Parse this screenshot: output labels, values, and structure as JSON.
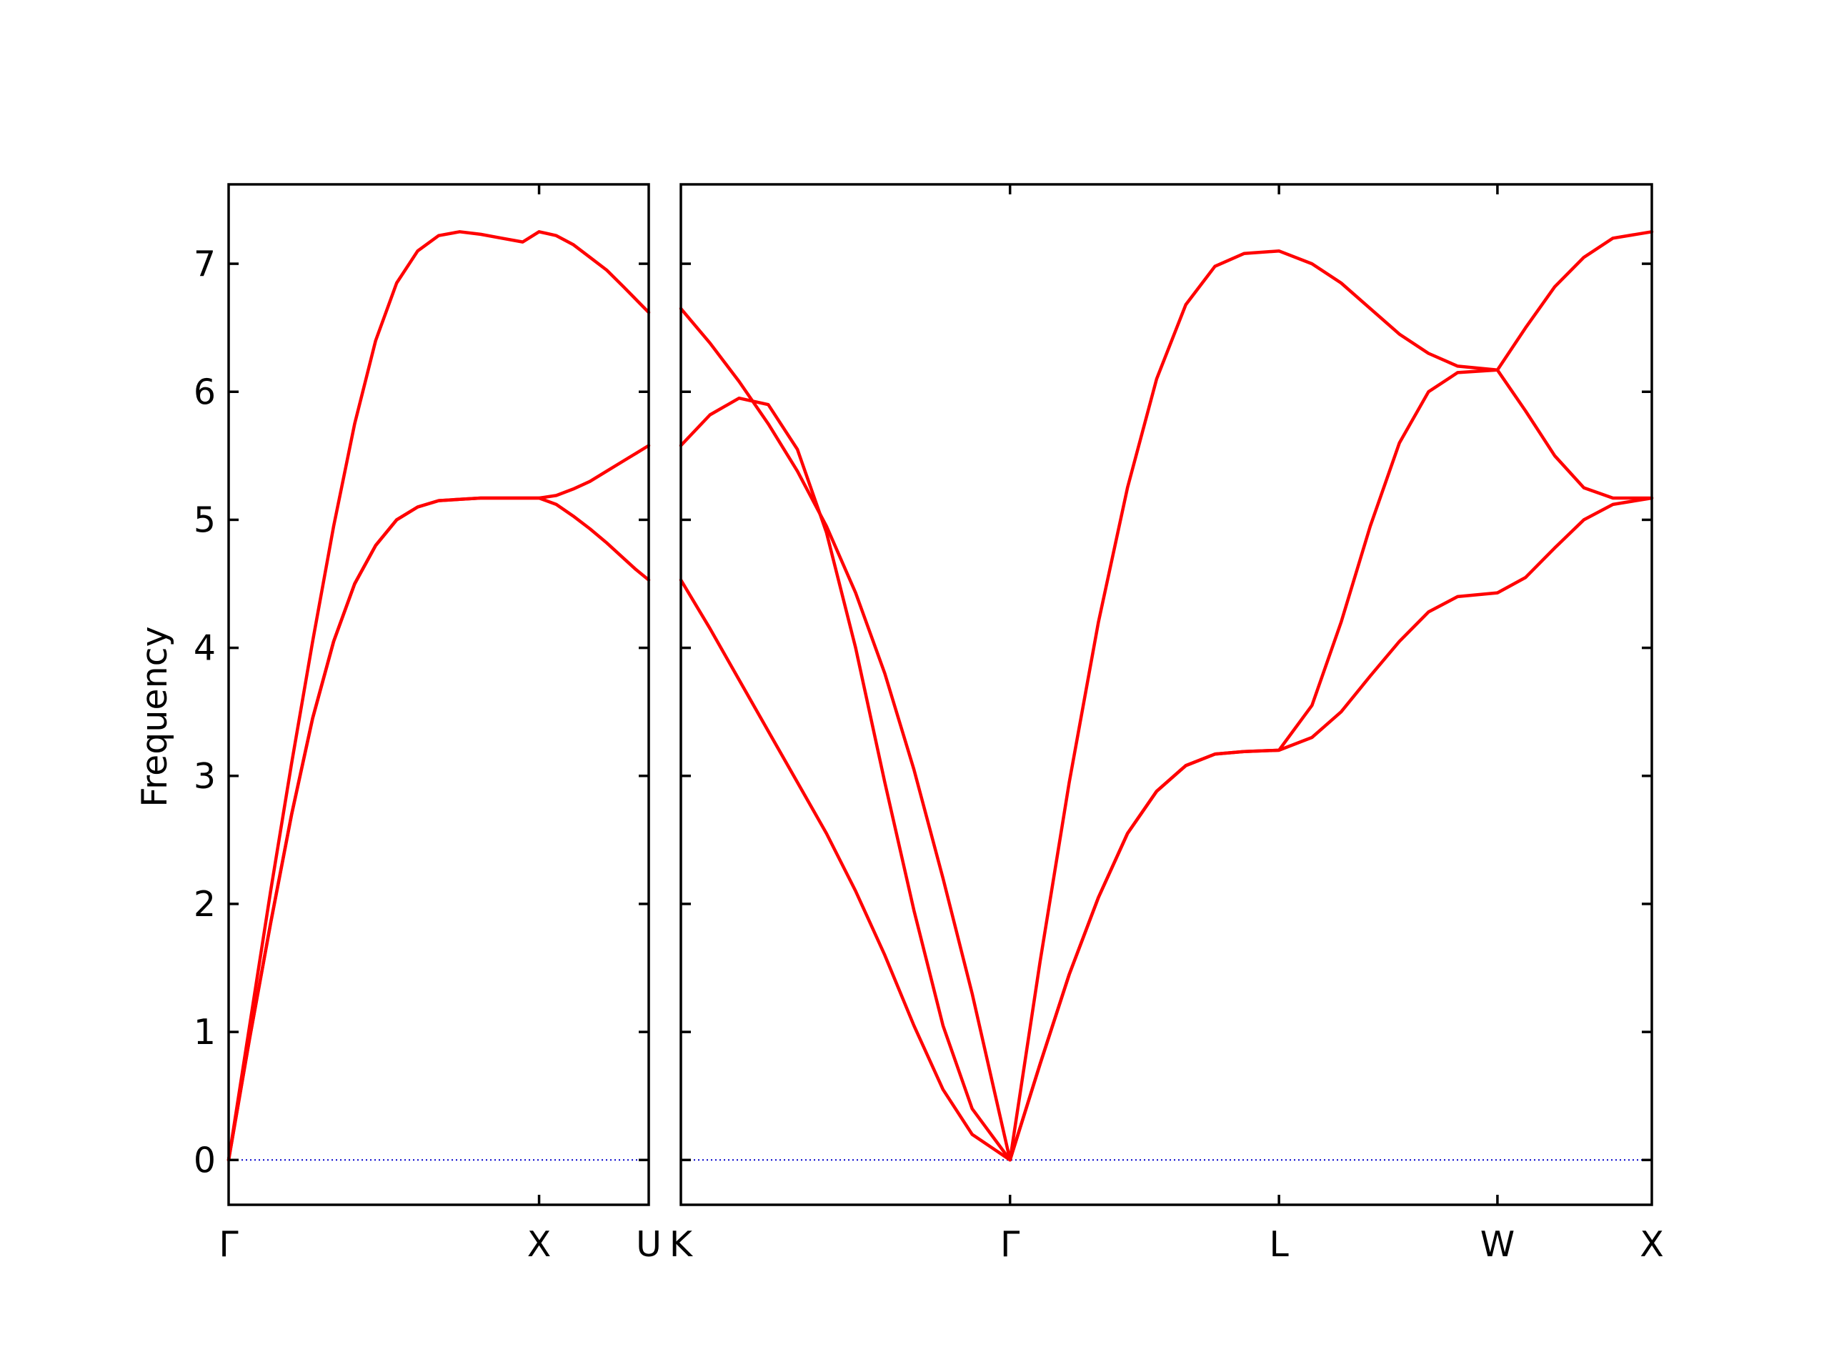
{
  "chart_data": {
    "type": "line",
    "title": "",
    "ylabel": "Frequency",
    "ylim": [
      -0.35,
      7.62
    ],
    "yticks": [
      0,
      1,
      2,
      3,
      4,
      5,
      6,
      7
    ],
    "colors": {
      "bands": "#ff0000",
      "zero_line": "#0000cc",
      "frame": "#000000"
    },
    "grid": false,
    "panels": [
      {
        "xlim": [
          0,
          1.0
        ],
        "xticks": [
          {
            "x": 0,
            "label": "Γ"
          },
          {
            "x": 0.739,
            "label": "X"
          },
          {
            "x": 1.0,
            "label": "U"
          }
        ],
        "series": [
          {
            "x": [
              0,
              0.05,
              0.1,
              0.15,
              0.2,
              0.25,
              0.3,
              0.35,
              0.4,
              0.45,
              0.5,
              0.55,
              0.6,
              0.65,
              0.7,
              0.739,
              0.78,
              0.82,
              0.86,
              0.9,
              0.94,
              0.97,
              1.0
            ],
            "y": [
              0,
              1.05,
              2.1,
              3.1,
              4.05,
              4.95,
              5.75,
              6.4,
              6.85,
              7.1,
              7.22,
              7.25,
              7.23,
              7.2,
              7.17,
              7.25,
              7.22,
              7.15,
              7.05,
              6.95,
              6.82,
              6.72,
              6.62
            ]
          },
          {
            "x": [
              0,
              0.05,
              0.1,
              0.15,
              0.2,
              0.25,
              0.3,
              0.35,
              0.4,
              0.45,
              0.5,
              0.55,
              0.6,
              0.65,
              0.7,
              0.739,
              0.78,
              0.82,
              0.86,
              0.9,
              0.94,
              0.97,
              1.0
            ],
            "y": [
              0,
              0.95,
              1.85,
              2.7,
              3.45,
              4.05,
              4.5,
              4.8,
              5.0,
              5.1,
              5.15,
              5.16,
              5.17,
              5.17,
              5.17,
              5.17,
              5.19,
              5.24,
              5.3,
              5.38,
              5.46,
              5.52,
              5.58
            ]
          },
          {
            "x": [
              0,
              0.05,
              0.1,
              0.15,
              0.2,
              0.25,
              0.3,
              0.35,
              0.4,
              0.45,
              0.5,
              0.55,
              0.6,
              0.65,
              0.7,
              0.739,
              0.78,
              0.82,
              0.86,
              0.9,
              0.94,
              0.97,
              1.0
            ],
            "y": [
              0,
              0.95,
              1.85,
              2.7,
              3.45,
              4.05,
              4.5,
              4.8,
              5.0,
              5.1,
              5.15,
              5.16,
              5.17,
              5.17,
              5.17,
              5.17,
              5.12,
              5.03,
              4.93,
              4.82,
              4.7,
              4.61,
              4.53
            ]
          }
        ]
      },
      {
        "xlim": [
          0,
          1.0
        ],
        "xticks": [
          {
            "x": 0,
            "label": "K"
          },
          {
            "x": 0.339,
            "label": "Γ"
          },
          {
            "x": 0.616,
            "label": "L"
          },
          {
            "x": 0.841,
            "label": "W"
          },
          {
            "x": 1.0,
            "label": "X"
          }
        ],
        "series": [
          {
            "x": [
              0,
              0.03,
              0.06,
              0.09,
              0.12,
              0.15,
              0.18,
              0.21,
              0.24,
              0.27,
              0.3,
              0.339,
              0.37,
              0.4,
              0.43,
              0.46,
              0.49,
              0.52,
              0.55,
              0.58,
              0.616,
              0.65,
              0.68,
              0.71,
              0.74,
              0.77,
              0.8,
              0.841,
              0.87,
              0.9,
              0.93,
              0.96,
              1.0
            ],
            "y": [
              6.65,
              6.38,
              6.08,
              5.75,
              5.38,
              4.95,
              4.43,
              3.8,
              3.05,
              2.2,
              1.3,
              0,
              1.55,
              2.95,
              4.2,
              5.25,
              6.1,
              6.68,
              6.98,
              7.08,
              7.1,
              7.0,
              6.85,
              6.65,
              6.45,
              6.3,
              6.2,
              6.17,
              6.5,
              6.82,
              7.05,
              7.2,
              7.25
            ]
          },
          {
            "x": [
              0,
              0.03,
              0.06,
              0.09,
              0.12,
              0.15,
              0.18,
              0.21,
              0.24,
              0.27,
              0.3,
              0.339,
              0.37,
              0.4,
              0.43,
              0.46,
              0.49,
              0.52,
              0.55,
              0.58,
              0.616,
              0.65,
              0.68,
              0.71,
              0.74,
              0.77,
              0.8,
              0.841,
              0.87,
              0.9,
              0.93,
              0.96,
              1.0
            ],
            "y": [
              5.58,
              5.82,
              5.95,
              5.9,
              5.55,
              4.9,
              4.0,
              2.95,
              1.95,
              1.05,
              0.4,
              0,
              0.75,
              1.45,
              2.05,
              2.55,
              2.88,
              3.08,
              3.17,
              3.19,
              3.2,
              3.55,
              4.2,
              4.95,
              5.6,
              6.0,
              6.15,
              6.17,
              5.85,
              5.5,
              5.25,
              5.17,
              5.17
            ]
          },
          {
            "x": [
              0,
              0.03,
              0.06,
              0.09,
              0.12,
              0.15,
              0.18,
              0.21,
              0.24,
              0.27,
              0.3,
              0.339,
              0.37,
              0.4,
              0.43,
              0.46,
              0.49,
              0.52,
              0.55,
              0.58,
              0.616,
              0.65,
              0.68,
              0.71,
              0.74,
              0.77,
              0.8,
              0.841,
              0.87,
              0.9,
              0.93,
              0.96,
              1.0
            ],
            "y": [
              4.53,
              4.15,
              3.75,
              3.35,
              2.95,
              2.55,
              2.1,
              1.6,
              1.05,
              0.55,
              0.2,
              0,
              0.75,
              1.45,
              2.05,
              2.55,
              2.88,
              3.08,
              3.17,
              3.19,
              3.2,
              3.3,
              3.5,
              3.78,
              4.05,
              4.28,
              4.4,
              4.43,
              4.55,
              4.78,
              5.0,
              5.12,
              5.17
            ]
          }
        ]
      }
    ]
  }
}
